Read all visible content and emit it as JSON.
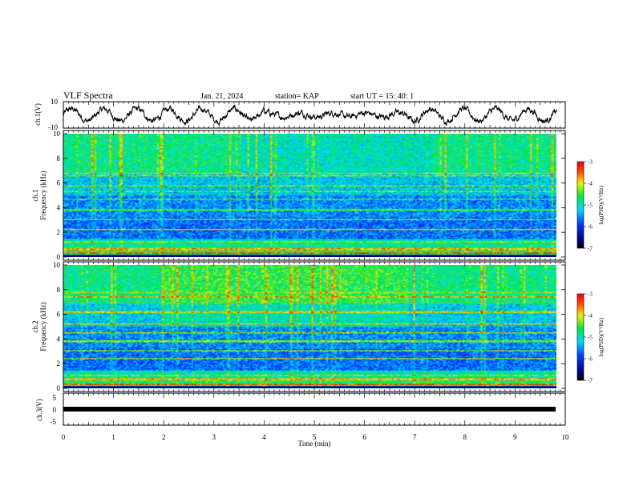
{
  "header": {
    "title": "VLF Spectra",
    "date": "Jan. 21, 2024",
    "station": "station= KAP",
    "start": "start  UT =   15: 40: 1"
  },
  "chart_data": [
    {
      "type": "line",
      "ylabel": "ch.1(V)",
      "ylim": [
        -10,
        10
      ],
      "yticks": [
        "10",
        "-10"
      ],
      "xlim": [
        0,
        10
      ],
      "series": [
        {
          "values_description_free": true
        }
      ]
    },
    {
      "type": "heatmap",
      "ylabel_line1": "ch.1",
      "ylabel_line2": "Frequency (kHz)",
      "ylim": [
        0,
        10
      ],
      "yticks": [
        "0",
        "2",
        "4",
        "6",
        "8",
        "10"
      ],
      "xlim": [
        0,
        9.83
      ],
      "colorbar": {
        "ticks": [
          "-3",
          "-4",
          "-5",
          "-6",
          "-7"
        ],
        "label": "log(PSD)(V²/Hz)",
        "range": [
          -7,
          -3
        ]
      }
    },
    {
      "type": "heatmap",
      "ylabel_line1": "ch.2",
      "ylabel_line2": "Frequency (kHz)",
      "ylim": [
        0,
        10
      ],
      "yticks": [
        "0",
        "2",
        "4",
        "6",
        "8",
        "10"
      ],
      "xlim": [
        0,
        9.83
      ],
      "colorbar": {
        "ticks": [
          "-3",
          "-4",
          "-5",
          "-6",
          "-7"
        ],
        "label": "log(PSD)(V²/Hz)",
        "range": [
          -7,
          -3
        ]
      }
    },
    {
      "type": "line",
      "ylabel": "ch.3(V)",
      "ylim": [
        -5,
        5
      ],
      "yticks": [
        "5",
        "0",
        "-5"
      ],
      "xlim": [
        0,
        10
      ],
      "xticks": [
        "0",
        "1",
        "2",
        "3",
        "4",
        "5",
        "6",
        "7",
        "8",
        "9",
        "10"
      ],
      "xlabel": "Time (min)",
      "series": [
        {
          "constant_value": -1.8
        }
      ]
    }
  ]
}
